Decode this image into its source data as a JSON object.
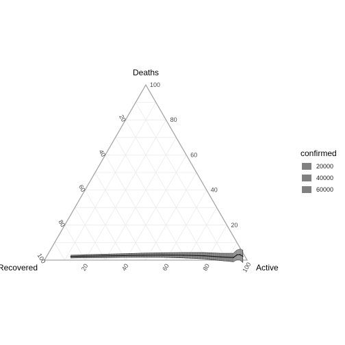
{
  "chart_data": {
    "type": "ternary",
    "axes": {
      "top": "Deaths",
      "left": "Recovered",
      "right": "Active"
    },
    "ticks": [
      20,
      40,
      60,
      80,
      100
    ],
    "grid": true,
    "legend": {
      "title": "confirmed",
      "position": "right",
      "entries": [
        {
          "label": "20000",
          "value": 20000
        },
        {
          "label": "40000",
          "value": 40000
        },
        {
          "label": "60000",
          "value": 60000
        }
      ]
    },
    "colors": {
      "frame": "#a6a6a6",
      "grid": "#ebebeb",
      "series": "#808080",
      "series_dark": "#1a1a1a"
    },
    "series": [
      {
        "points": [
          {
            "deaths": 2.0,
            "recovered": 86.0,
            "active": 12.0
          },
          {
            "deaths": 2.2,
            "recovered": 80.0,
            "active": 17.8
          },
          {
            "deaths": 2.4,
            "recovered": 70.0,
            "active": 27.6
          },
          {
            "deaths": 2.6,
            "recovered": 60.0,
            "active": 37.4
          },
          {
            "deaths": 2.8,
            "recovered": 50.0,
            "active": 47.2
          },
          {
            "deaths": 2.9,
            "recovered": 40.0,
            "active": 57.1
          },
          {
            "deaths": 2.8,
            "recovered": 30.0,
            "active": 67.2
          },
          {
            "deaths": 2.5,
            "recovered": 20.0,
            "active": 77.5
          },
          {
            "deaths": 1.8,
            "recovered": 12.0,
            "active": 86.2
          },
          {
            "deaths": 1.5,
            "recovered": 6.0,
            "active": 92.5
          },
          {
            "deaths": 3.0,
            "recovered": 3.5,
            "active": 93.5
          },
          {
            "deaths": 3.2,
            "recovered": 2.0,
            "active": 94.8
          },
          {
            "deaths": 2.2,
            "recovered": 1.0,
            "active": 96.8
          }
        ],
        "confirmed": [
          1000,
          2000,
          4000,
          6000,
          9000,
          13000,
          18000,
          24000,
          30000,
          38000,
          46000,
          55000,
          64000
        ]
      }
    ]
  }
}
